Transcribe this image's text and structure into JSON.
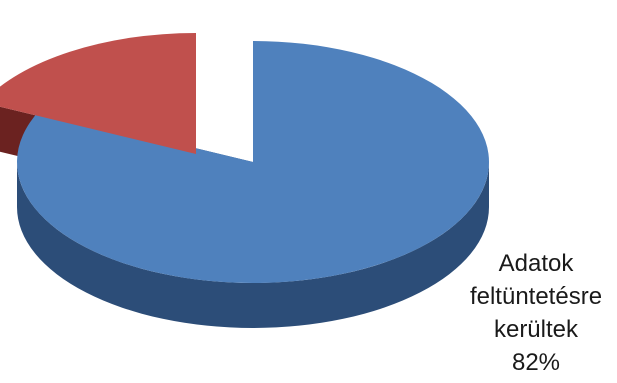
{
  "chart_data": {
    "type": "pie",
    "style": "3d-exploded",
    "slices": [
      {
        "label_lines": [
          "Adatok",
          "feltüntetésre",
          "kerültek"
        ],
        "value": 82,
        "value_text": "82%",
        "color": "#4f81bd",
        "side_color": "#2c4d78"
      },
      {
        "label_lines": [],
        "value": 18,
        "value_text": "",
        "color": "#c0504d",
        "side_color": "#6b2220",
        "exploded": true
      }
    ],
    "legend": "none"
  }
}
